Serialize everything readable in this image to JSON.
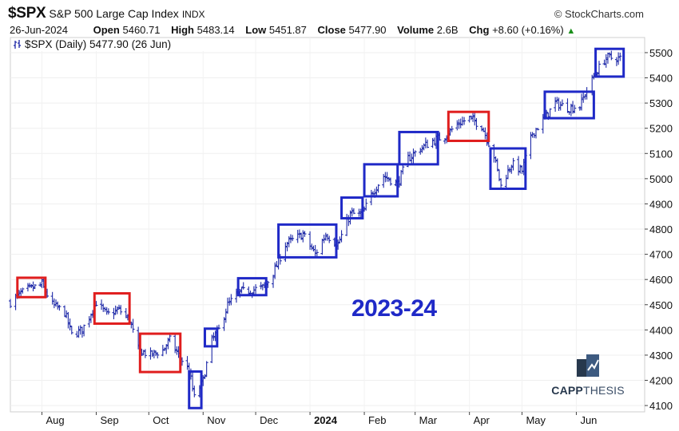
{
  "header": {
    "symbol": "$SPX",
    "name": "S&P 500 Large Cap Index",
    "exchange": "INDX",
    "credit": "© StockCharts.com",
    "date": "26-Jun-2024",
    "open_label": "Open",
    "open": "5460.71",
    "high_label": "High",
    "high": "5483.14",
    "low_label": "Low",
    "low": "5451.87",
    "close_label": "Close",
    "close": "5477.90",
    "volume_label": "Volume",
    "volume": "2.6B",
    "chg_label": "Chg",
    "chg": "+8.60 (+0.16%)"
  },
  "legend": {
    "label": "$SPX (Daily) 5477.90 (26 Jun)"
  },
  "watermark": "2023-24",
  "logo": {
    "text_bold": "CAPP",
    "text_thin": "THESIS"
  },
  "colors": {
    "blue_box": "#1f29c7",
    "red_box": "#e01e1e",
    "bars": "#1f2aa8",
    "watermark": "#1f29c7"
  },
  "chart_data": {
    "type": "ohlc",
    "title": "$SPX (Daily) 5477.90 (26 Jun)",
    "ylim": [
      4075,
      5560
    ],
    "y_ticks": [
      4100,
      4200,
      4300,
      4400,
      4500,
      4600,
      4700,
      4800,
      4900,
      5000,
      5100,
      5200,
      5300,
      5400,
      5500
    ],
    "x_tick_labels": [
      "Aug",
      "Sep",
      "Oct",
      "Nov",
      "Dec",
      "2024",
      "Feb",
      "Mar",
      "Apr",
      "May",
      "Jun"
    ],
    "x_tick_dates": [
      "2023-08-01",
      "2023-09-01",
      "2023-10-01",
      "2023-11-01",
      "2023-12-01",
      "2024-01-01",
      "2024-02-01",
      "2024-03-01",
      "2024-04-01",
      "2024-05-01",
      "2024-06-01"
    ],
    "x_range": [
      "2023-07-14",
      "2024-07-10"
    ],
    "series": [
      {
        "values": [
          [
            "2023-07-14",
            4510
          ],
          [
            "2023-07-20",
            4545
          ],
          [
            "2023-07-26",
            4565
          ],
          [
            "2023-08-01",
            4580
          ],
          [
            "2023-08-07",
            4500
          ],
          [
            "2023-08-14",
            4470
          ],
          [
            "2023-08-18",
            4380
          ],
          [
            "2023-08-24",
            4400
          ],
          [
            "2023-08-30",
            4480
          ],
          [
            "2023-09-01",
            4510
          ],
          [
            "2023-09-07",
            4460
          ],
          [
            "2023-09-14",
            4480
          ],
          [
            "2023-09-20",
            4440
          ],
          [
            "2023-09-25",
            4320
          ],
          [
            "2023-10-02",
            4300
          ],
          [
            "2023-10-09",
            4320
          ],
          [
            "2023-10-13",
            4360
          ],
          [
            "2023-10-18",
            4300
          ],
          [
            "2023-10-24",
            4240
          ],
          [
            "2023-10-27",
            4130
          ],
          [
            "2023-11-01",
            4200
          ],
          [
            "2023-11-06",
            4360
          ],
          [
            "2023-11-10",
            4400
          ],
          [
            "2023-11-15",
            4500
          ],
          [
            "2023-11-22",
            4550
          ],
          [
            "2023-11-30",
            4560
          ],
          [
            "2023-12-06",
            4570
          ],
          [
            "2023-12-12",
            4640
          ],
          [
            "2023-12-18",
            4740
          ],
          [
            "2023-12-28",
            4780
          ],
          [
            "2024-01-04",
            4700
          ],
          [
            "2024-01-10",
            4780
          ],
          [
            "2024-01-17",
            4740
          ],
          [
            "2024-01-24",
            4860
          ],
          [
            "2024-01-31",
            4860
          ],
          [
            "2024-02-06",
            4950
          ],
          [
            "2024-02-12",
            5010
          ],
          [
            "2024-02-20",
            4980
          ],
          [
            "2024-02-26",
            5080
          ],
          [
            "2024-03-04",
            5120
          ],
          [
            "2024-03-11",
            5150
          ],
          [
            "2024-03-18",
            5170
          ],
          [
            "2024-03-26",
            5220
          ],
          [
            "2024-04-01",
            5240
          ],
          [
            "2024-04-08",
            5210
          ],
          [
            "2024-04-15",
            5090
          ],
          [
            "2024-04-19",
            4970
          ],
          [
            "2024-04-25",
            5060
          ],
          [
            "2024-05-01",
            5030
          ],
          [
            "2024-05-07",
            5180
          ],
          [
            "2024-05-14",
            5240
          ],
          [
            "2024-05-20",
            5300
          ],
          [
            "2024-05-28",
            5280
          ],
          [
            "2024-06-03",
            5290
          ],
          [
            "2024-06-07",
            5350
          ],
          [
            "2024-06-12",
            5420
          ],
          [
            "2024-06-18",
            5480
          ],
          [
            "2024-06-26",
            5478
          ]
        ]
      }
    ],
    "boxes": [
      {
        "color": "red",
        "start": "2023-07-18",
        "end": "2023-08-03",
        "low": 4530,
        "high": 4607
      },
      {
        "color": "red",
        "start": "2023-08-31",
        "end": "2023-09-20",
        "low": 4425,
        "high": 4545
      },
      {
        "color": "red",
        "start": "2023-09-26",
        "end": "2023-10-19",
        "low": 4233,
        "high": 4385
      },
      {
        "color": "blue",
        "start": "2023-10-24",
        "end": "2023-10-31",
        "low": 4090,
        "high": 4235
      },
      {
        "color": "blue",
        "start": "2023-11-02",
        "end": "2023-11-09",
        "low": 4335,
        "high": 4405
      },
      {
        "color": "blue",
        "start": "2023-11-21",
        "end": "2023-12-07",
        "low": 4538,
        "high": 4605
      },
      {
        "color": "blue",
        "start": "2023-12-14",
        "end": "2024-01-16",
        "low": 4688,
        "high": 4818
      },
      {
        "color": "blue",
        "start": "2024-01-19",
        "end": "2024-01-31",
        "low": 4843,
        "high": 4925
      },
      {
        "color": "blue",
        "start": "2024-02-01",
        "end": "2024-02-20",
        "low": 4930,
        "high": 5057
      },
      {
        "color": "blue",
        "start": "2024-02-21",
        "end": "2024-03-14",
        "low": 5057,
        "high": 5185
      },
      {
        "color": "red",
        "start": "2024-03-20",
        "end": "2024-04-12",
        "low": 5150,
        "high": 5265
      },
      {
        "color": "blue",
        "start": "2024-04-13",
        "end": "2024-05-03",
        "low": 4960,
        "high": 5120
      },
      {
        "color": "blue",
        "start": "2024-05-14",
        "end": "2024-06-11",
        "low": 5240,
        "high": 5345
      },
      {
        "color": "blue",
        "start": "2024-06-12",
        "end": "2024-06-28",
        "low": 5405,
        "high": 5515
      }
    ]
  }
}
